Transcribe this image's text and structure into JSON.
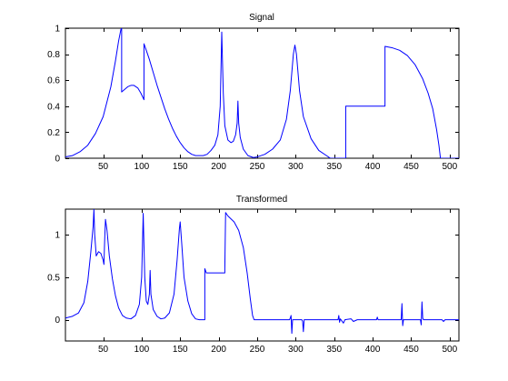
{
  "chart_data": [
    {
      "type": "line",
      "title": "Signal",
      "xlabel": "",
      "ylabel": "",
      "xlim": [
        1,
        512
      ],
      "ylim": [
        0,
        1
      ],
      "xticks": [
        50,
        100,
        150,
        200,
        250,
        300,
        350,
        400,
        450,
        500
      ],
      "yticks": [
        0,
        0.2,
        0.4,
        0.6,
        0.8,
        1
      ],
      "ytick_labels": [
        "0",
        "0.2",
        "0.4",
        "0.6",
        "0.8",
        "1"
      ],
      "grid": false,
      "series": [
        {
          "color": "#0000ff",
          "points": [
            [
              1,
              0.01
            ],
            [
              10,
              0.02
            ],
            [
              20,
              0.05
            ],
            [
              30,
              0.1
            ],
            [
              40,
              0.19
            ],
            [
              50,
              0.32
            ],
            [
              60,
              0.55
            ],
            [
              66,
              0.75
            ],
            [
              70,
              0.9
            ],
            [
              73,
              0.99
            ],
            [
              74,
              1.0
            ],
            [
              74,
              0.51
            ],
            [
              78,
              0.53
            ],
            [
              82,
              0.55
            ],
            [
              86,
              0.56
            ],
            [
              90,
              0.56
            ],
            [
              95,
              0.54
            ],
            [
              99,
              0.5
            ],
            [
              103,
              0.45
            ],
            [
              103,
              0.88
            ],
            [
              106,
              0.83
            ],
            [
              110,
              0.76
            ],
            [
              115,
              0.66
            ],
            [
              120,
              0.56
            ],
            [
              125,
              0.47
            ],
            [
              130,
              0.38
            ],
            [
              135,
              0.3
            ],
            [
              140,
              0.23
            ],
            [
              145,
              0.17
            ],
            [
              150,
              0.12
            ],
            [
              155,
              0.08
            ],
            [
              160,
              0.05
            ],
            [
              165,
              0.03
            ],
            [
              170,
              0.02
            ],
            [
              175,
              0.02
            ],
            [
              180,
              0.02
            ],
            [
              185,
              0.03
            ],
            [
              190,
              0.06
            ],
            [
              195,
              0.1
            ],
            [
              199,
              0.18
            ],
            [
              202,
              0.4
            ],
            [
              204,
              0.97
            ],
            [
              206,
              0.5
            ],
            [
              208,
              0.25
            ],
            [
              212,
              0.14
            ],
            [
              216,
              0.12
            ],
            [
              219,
              0.13
            ],
            [
              222,
              0.18
            ],
            [
              224,
              0.27
            ],
            [
              225,
              0.44
            ],
            [
              226,
              0.27
            ],
            [
              228,
              0.16
            ],
            [
              232,
              0.07
            ],
            [
              238,
              0.02
            ],
            [
              245,
              0.005
            ],
            [
              250,
              0.01
            ],
            [
              260,
              0.03
            ],
            [
              270,
              0.07
            ],
            [
              280,
              0.14
            ],
            [
              288,
              0.3
            ],
            [
              293,
              0.52
            ],
            [
              297,
              0.8
            ],
            [
              299,
              0.87
            ],
            [
              301,
              0.8
            ],
            [
              305,
              0.52
            ],
            [
              310,
              0.32
            ],
            [
              320,
              0.15
            ],
            [
              330,
              0.06
            ],
            [
              340,
              0.02
            ],
            [
              345,
              0.0
            ],
            [
              364,
              0.0
            ],
            [
              365,
              0.0
            ],
            [
              365,
              0.4
            ],
            [
              416,
              0.4
            ],
            [
              416,
              0.86
            ],
            [
              425,
              0.85
            ],
            [
              435,
              0.83
            ],
            [
              445,
              0.79
            ],
            [
              455,
              0.72
            ],
            [
              465,
              0.61
            ],
            [
              472,
              0.5
            ],
            [
              478,
              0.38
            ],
            [
              483,
              0.22
            ],
            [
              486,
              0.1
            ],
            [
              488,
              0.0
            ],
            [
              512,
              0.0
            ]
          ]
        }
      ]
    },
    {
      "type": "line",
      "title": "Transformed",
      "xlabel": "",
      "ylabel": "",
      "xlim": [
        1,
        512
      ],
      "ylim": [
        -0.25,
        1.3
      ],
      "xticks": [
        50,
        100,
        150,
        200,
        250,
        300,
        350,
        400,
        450,
        500
      ],
      "yticks": [
        0,
        0.5,
        1
      ],
      "ytick_labels": [
        "0",
        "0.5",
        "1"
      ],
      "grid": false,
      "series": [
        {
          "color": "#0000ff",
          "points": [
            [
              1,
              0.02
            ],
            [
              10,
              0.04
            ],
            [
              18,
              0.08
            ],
            [
              25,
              0.2
            ],
            [
              30,
              0.45
            ],
            [
              34,
              0.8
            ],
            [
              37,
              1.1
            ],
            [
              38,
              1.3
            ],
            [
              39,
              1.0
            ],
            [
              41,
              0.75
            ],
            [
              44,
              0.8
            ],
            [
              47,
              0.78
            ],
            [
              50,
              0.7
            ],
            [
              51,
              0.65
            ],
            [
              52,
              0.95
            ],
            [
              53,
              1.18
            ],
            [
              55,
              1.05
            ],
            [
              58,
              0.75
            ],
            [
              62,
              0.48
            ],
            [
              66,
              0.28
            ],
            [
              70,
              0.14
            ],
            [
              75,
              0.05
            ],
            [
              80,
              0.02
            ],
            [
              86,
              0.01
            ],
            [
              92,
              0.05
            ],
            [
              97,
              0.18
            ],
            [
              100,
              0.5
            ],
            [
              102,
              1.25
            ],
            [
              104,
              0.5
            ],
            [
              106,
              0.22
            ],
            [
              108,
              0.18
            ],
            [
              110,
              0.3
            ],
            [
              111,
              0.58
            ],
            [
              112,
              0.3
            ],
            [
              115,
              0.12
            ],
            [
              120,
              0.04
            ],
            [
              125,
              0.01
            ],
            [
              130,
              0.02
            ],
            [
              136,
              0.08
            ],
            [
              142,
              0.3
            ],
            [
              146,
              0.7
            ],
            [
              149,
              1.07
            ],
            [
              150,
              1.15
            ],
            [
              152,
              0.9
            ],
            [
              155,
              0.5
            ],
            [
              160,
              0.22
            ],
            [
              165,
              0.07
            ],
            [
              170,
              0.01
            ],
            [
              175,
              0.0
            ],
            [
              181,
              0.0
            ],
            [
              182,
              0.0
            ],
            [
              182,
              0.6
            ],
            [
              184,
              0.55
            ],
            [
              208,
              0.55
            ],
            [
              208,
              0.6
            ],
            [
              209,
              1.26
            ],
            [
              212,
              1.22
            ],
            [
              220,
              1.15
            ],
            [
              226,
              1.05
            ],
            [
              232,
              0.85
            ],
            [
              237,
              0.55
            ],
            [
              241,
              0.25
            ],
            [
              244,
              0.05
            ],
            [
              246,
              0.0
            ],
            [
              292,
              0.0
            ],
            [
              293,
              0.02
            ],
            [
              294,
              0.05
            ],
            [
              295,
              -0.16
            ],
            [
              296,
              0.0
            ],
            [
              308,
              0.0
            ],
            [
              309,
              -0.02
            ],
            [
              310,
              -0.14
            ],
            [
              311,
              0.0
            ],
            [
              355,
              0.0
            ],
            [
              356,
              0.05
            ],
            [
              357,
              -0.03
            ],
            [
              358,
              0.01
            ],
            [
              362,
              -0.04
            ],
            [
              364,
              0.0
            ],
            [
              372,
              0.01
            ],
            [
              375,
              -0.02
            ],
            [
              380,
              0.0
            ],
            [
              405,
              0.0
            ],
            [
              406,
              0.03
            ],
            [
              407,
              0.0
            ],
            [
              437,
              0.0
            ],
            [
              438,
              0.19
            ],
            [
              439,
              -0.07
            ],
            [
              440,
              0.0
            ],
            [
              462,
              0.0
            ],
            [
              463,
              -0.06
            ],
            [
              464,
              0.21
            ],
            [
              465,
              0.02
            ],
            [
              466,
              0.0
            ],
            [
              490,
              0.0
            ],
            [
              492,
              -0.02
            ],
            [
              494,
              0.0
            ],
            [
              512,
              0.0
            ]
          ]
        }
      ]
    }
  ]
}
